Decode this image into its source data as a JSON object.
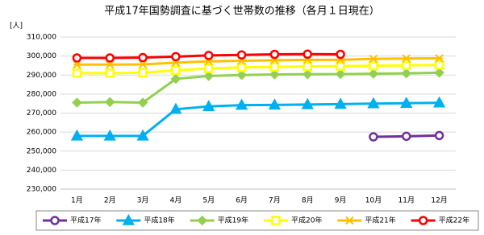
{
  "chart_data": {
    "type": "line",
    "title": "平成17年国勢調査に基づく世帯数の推移（各月１日現在）",
    "y_label": "[人]",
    "categories": [
      "1月",
      "2月",
      "3月",
      "4月",
      "5月",
      "6月",
      "7月",
      "8月",
      "9月",
      "10月",
      "11月",
      "12月"
    ],
    "ylim": [
      230000,
      310000
    ],
    "yticks": [
      {
        "value": 230000,
        "label": "230,000"
      },
      {
        "value": 240000,
        "label": "240,000"
      },
      {
        "value": 250000,
        "label": "250,000"
      },
      {
        "value": 260000,
        "label": "260,000"
      },
      {
        "value": 270000,
        "label": "270,000"
      },
      {
        "value": 280000,
        "label": "280,000"
      },
      {
        "value": 290000,
        "label": "290,000"
      },
      {
        "value": 300000,
        "label": "300,000"
      },
      {
        "value": 310000,
        "label": "310,000"
      }
    ],
    "grid": true,
    "series": [
      {
        "name": "平成17年",
        "color": "#7030a0",
        "marker": "circle",
        "values": [
          null,
          null,
          null,
          null,
          null,
          null,
          null,
          null,
          null,
          257500,
          257800,
          258200
        ]
      },
      {
        "name": "平成18年",
        "color": "#00b0f0",
        "marker": "triangle",
        "values": [
          258000,
          258000,
          258000,
          272000,
          273500,
          274200,
          274300,
          274500,
          274700,
          275000,
          275200,
          275400
        ]
      },
      {
        "name": "平成19年",
        "color": "#92d050",
        "marker": "diamond",
        "values": [
          275500,
          275800,
          275500,
          288000,
          289500,
          290000,
          290300,
          290400,
          290500,
          290700,
          290900,
          291200
        ]
      },
      {
        "name": "平成20年",
        "color": "#ffff00",
        "marker": "square",
        "values": [
          291000,
          291000,
          291200,
          292500,
          293500,
          294000,
          294300,
          294500,
          294700,
          294900,
          295100,
          295300
        ]
      },
      {
        "name": "平成21年",
        "color": "#ffc000",
        "marker": "star",
        "values": [
          295500,
          295500,
          295600,
          296500,
          297200,
          297500,
          297800,
          298000,
          298000,
          298500,
          298700,
          298800
        ]
      },
      {
        "name": "平成22年",
        "color": "#ff0000",
        "marker": "circle",
        "values": [
          299000,
          299000,
          299200,
          299700,
          300300,
          300600,
          300900,
          301000,
          300900,
          null,
          null,
          null
        ]
      }
    ]
  }
}
